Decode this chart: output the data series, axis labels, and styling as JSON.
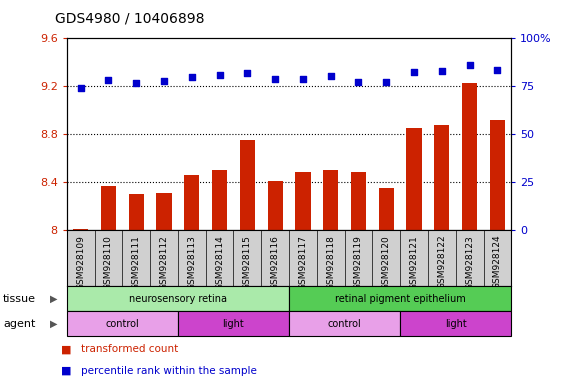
{
  "title": "GDS4980 / 10406898",
  "samples": [
    "GSM928109",
    "GSM928110",
    "GSM928111",
    "GSM928112",
    "GSM928113",
    "GSM928114",
    "GSM928115",
    "GSM928116",
    "GSM928117",
    "GSM928118",
    "GSM928119",
    "GSM928120",
    "GSM928121",
    "GSM928122",
    "GSM928123",
    "GSM928124"
  ],
  "bar_values": [
    8.01,
    8.37,
    8.3,
    8.31,
    8.46,
    8.5,
    8.75,
    8.41,
    8.49,
    8.5,
    8.49,
    8.35,
    8.85,
    8.88,
    9.23,
    8.92
  ],
  "dot_values": [
    74.0,
    78.5,
    77.0,
    78.0,
    80.0,
    81.0,
    82.0,
    79.0,
    79.0,
    80.5,
    77.5,
    77.5,
    82.5,
    83.0,
    86.0,
    83.5
  ],
  "bar_color": "#cc2200",
  "dot_color": "#0000cc",
  "ylim_left": [
    8.0,
    9.6
  ],
  "ylim_right": [
    0,
    100
  ],
  "yticks_left": [
    8.0,
    8.4,
    8.8,
    9.2,
    9.6
  ],
  "yticks_right": [
    0,
    25,
    50,
    75,
    100
  ],
  "ytick_labels_left": [
    "8",
    "8.4",
    "8.8",
    "9.2",
    "9.6"
  ],
  "ytick_labels_right": [
    "0",
    "25",
    "50",
    "75",
    "100%"
  ],
  "hlines": [
    8.4,
    8.8,
    9.2
  ],
  "tissue_groups": [
    {
      "label": "neurosensory retina",
      "start": 0,
      "end": 7,
      "color": "#aaeaaa"
    },
    {
      "label": "retinal pigment epithelium",
      "start": 8,
      "end": 15,
      "color": "#55cc55"
    }
  ],
  "agent_groups": [
    {
      "label": "control",
      "start": 0,
      "end": 3,
      "color": "#e8a0e8"
    },
    {
      "label": "light",
      "start": 4,
      "end": 7,
      "color": "#cc44cc"
    },
    {
      "label": "control",
      "start": 8,
      "end": 11,
      "color": "#e8a0e8"
    },
    {
      "label": "light",
      "start": 12,
      "end": 15,
      "color": "#cc44cc"
    }
  ],
  "legend_items": [
    {
      "label": "transformed count",
      "color": "#cc2200"
    },
    {
      "label": "percentile rank within the sample",
      "color": "#0000cc"
    }
  ],
  "tissue_label": "tissue",
  "agent_label": "agent",
  "bg_color": "#d0d0d0"
}
